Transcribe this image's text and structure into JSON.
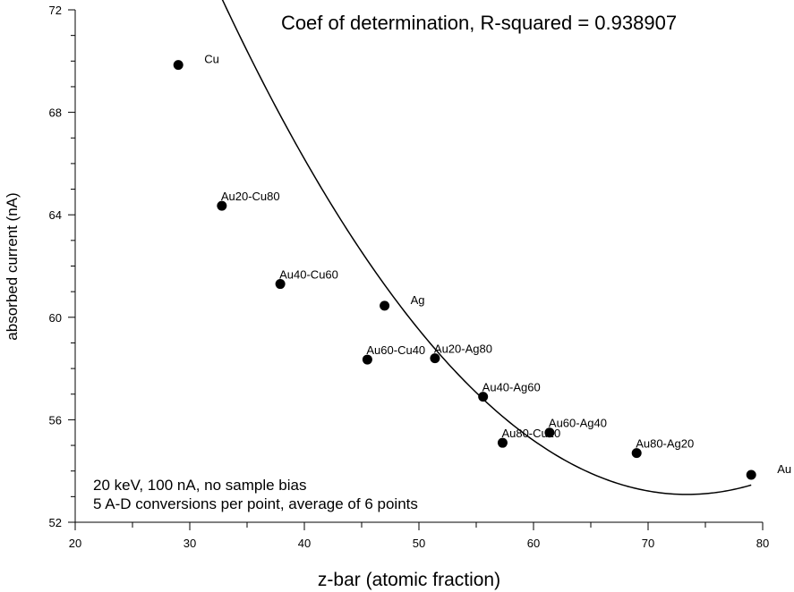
{
  "chart_data": {
    "type": "scatter",
    "title": "Coef of determination, R-squared = 0.938907",
    "xlabel": "z-bar (atomic fraction)",
    "ylabel": "absorbed current (nA)",
    "xlim": [
      20,
      80
    ],
    "ylim": [
      52,
      72
    ],
    "x_ticks": [
      20,
      30,
      40,
      50,
      60,
      70,
      80
    ],
    "y_ticks": [
      52,
      56,
      60,
      64,
      68,
      72
    ],
    "grid": false,
    "notes": [
      "20 keV, 100 nA, no sample bias",
      "5 A-D conversions per point, average of 6 points"
    ],
    "points": [
      {
        "label": "Cu",
        "x": 29.0,
        "y": 69.85
      },
      {
        "label": "Au20-Cu80",
        "x": 32.8,
        "y": 64.35
      },
      {
        "label": "Au40-Cu60",
        "x": 37.9,
        "y": 61.3
      },
      {
        "label": "Ag",
        "x": 47.0,
        "y": 60.45
      },
      {
        "label": "Au60-Cu40",
        "x": 45.5,
        "y": 58.35
      },
      {
        "label": "Au20-Ag80",
        "x": 51.4,
        "y": 58.4
      },
      {
        "label": "Au40-Ag60",
        "x": 55.6,
        "y": 56.9
      },
      {
        "label": "Au80-Cu20",
        "x": 57.3,
        "y": 55.1
      },
      {
        "label": "Au60-Ag40",
        "x": 61.4,
        "y": 55.5
      },
      {
        "label": "Au80-Ag20",
        "x": 69.0,
        "y": 54.7
      },
      {
        "label": "Au",
        "x": 79.0,
        "y": 53.85
      }
    ],
    "fit": {
      "type": "quadratic",
      "x_range": [
        29,
        79
      ],
      "coefficients": [
        116.34,
        -1.7235,
        0.01174
      ]
    }
  }
}
